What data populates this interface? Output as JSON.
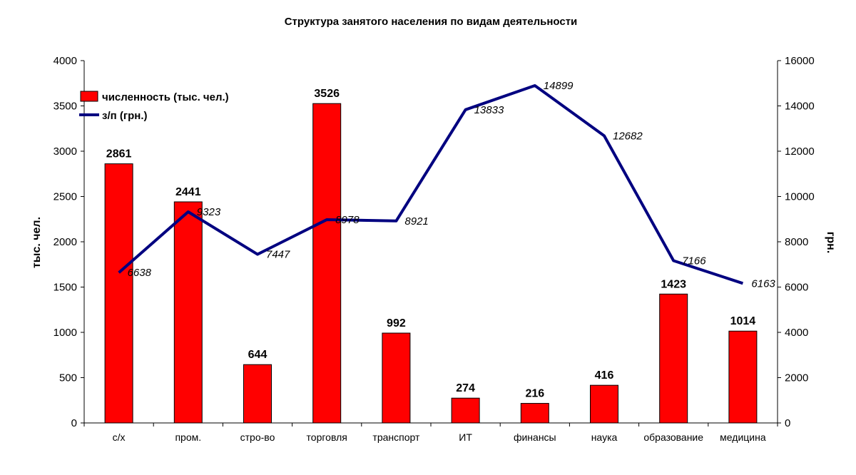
{
  "chart_data": {
    "type": "bar",
    "title": "Структура занятого населения по видам деятельности",
    "categories": [
      "с/х",
      "пром.",
      "стро-во",
      "торговля",
      "транспорт",
      "ИТ",
      "финансы",
      "наука",
      "образование",
      "медицина"
    ],
    "series": [
      {
        "name": "численность (тыс. чел.)",
        "type": "bar",
        "axis": "left",
        "color": "#ff0000",
        "values": [
          2861,
          2441,
          644,
          3526,
          992,
          274,
          216,
          416,
          1423,
          1014
        ]
      },
      {
        "name": "з/п (грн.)",
        "type": "line",
        "axis": "right",
        "color": "#000080",
        "values": [
          6638,
          9323,
          7447,
          8978,
          8921,
          13833,
          14899,
          12682,
          7166,
          6163
        ]
      }
    ],
    "ylabel": "тыс. чел.",
    "y2label": "грн.",
    "ylim": [
      0,
      4000
    ],
    "y2lim": [
      0,
      16000
    ],
    "yticks": [
      0,
      500,
      1000,
      1500,
      2000,
      2500,
      3000,
      3500,
      4000
    ],
    "y2ticks": [
      0,
      2000,
      4000,
      6000,
      8000,
      10000,
      12000,
      14000,
      16000
    ],
    "grid": false,
    "legend_position": "top-left"
  }
}
